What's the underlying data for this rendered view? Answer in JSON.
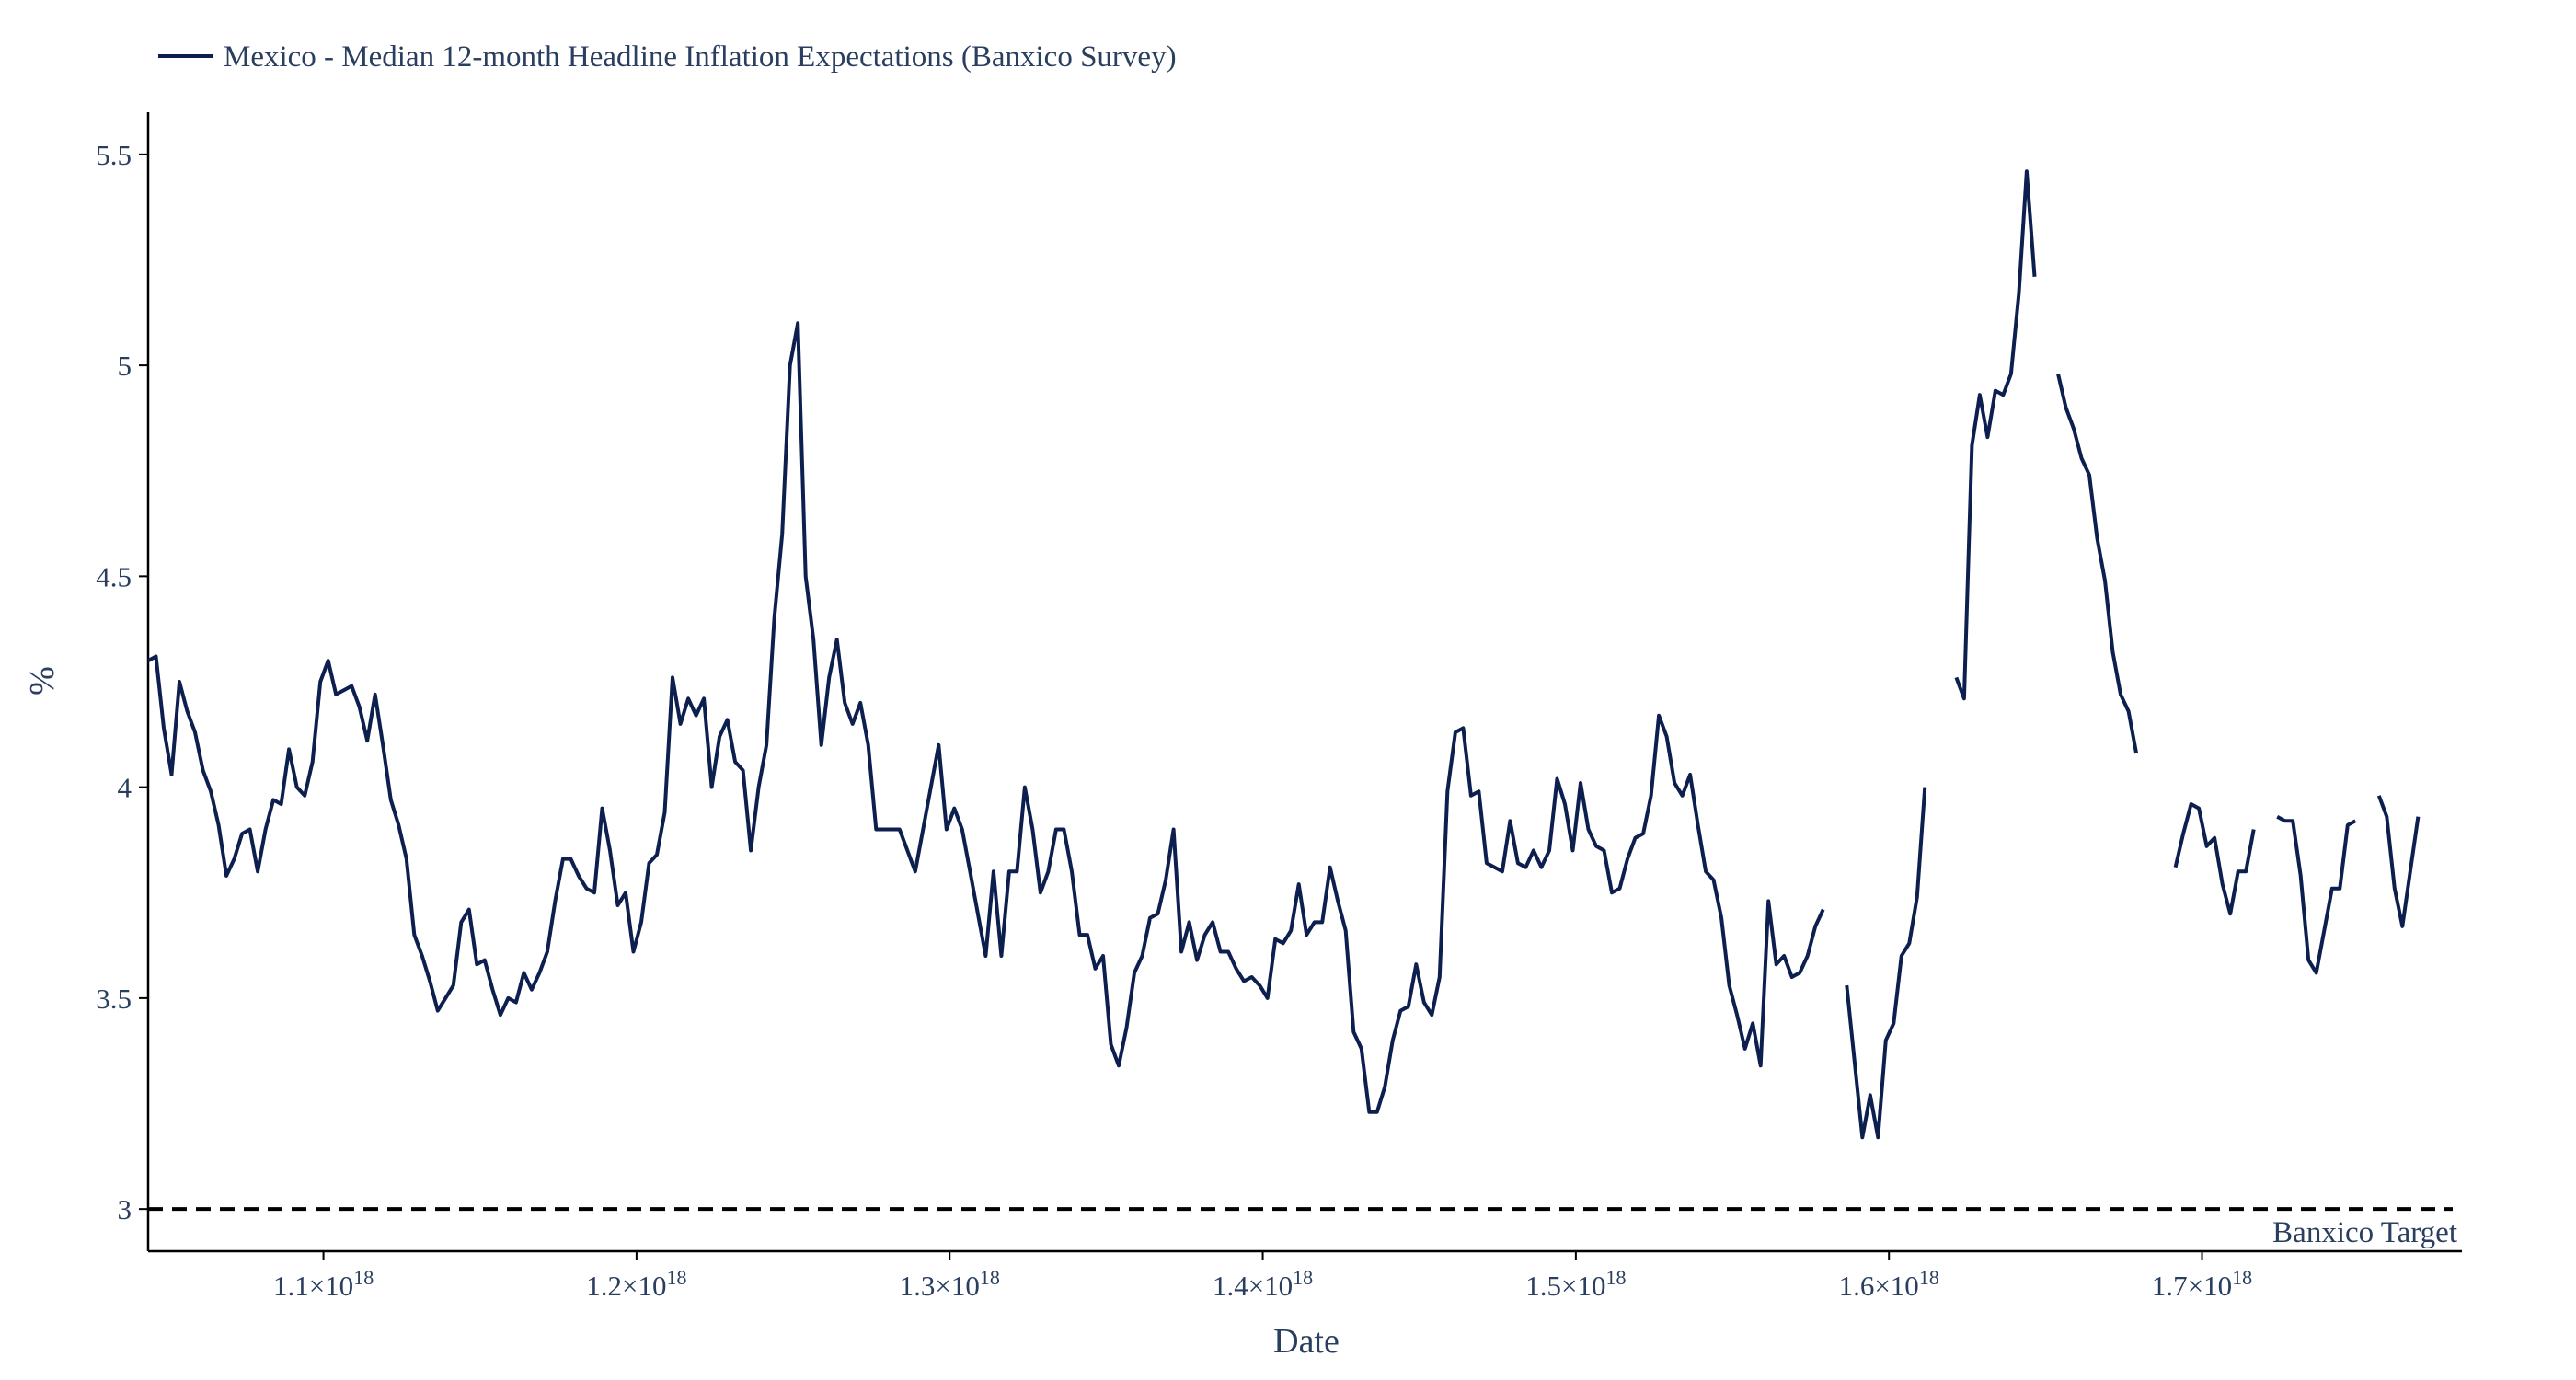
{
  "chart_data": {
    "type": "line",
    "title": "",
    "xlabel": "Date",
    "ylabel": "%",
    "xlim": [
      1.044e+18,
      1.783e+18
    ],
    "ylim": [
      2.9,
      5.6
    ],
    "grid": false,
    "legend_position": "top-left",
    "x_ticks": [
      {
        "value": 1.1e+18,
        "base": "1.1×10",
        "exp": "18"
      },
      {
        "value": 1.2e+18,
        "base": "1.2×10",
        "exp": "18"
      },
      {
        "value": 1.3e+18,
        "base": "1.3×10",
        "exp": "18"
      },
      {
        "value": 1.4e+18,
        "base": "1.4×10",
        "exp": "18"
      },
      {
        "value": 1.5e+18,
        "base": "1.5×10",
        "exp": "18"
      },
      {
        "value": 1.6e+18,
        "base": "1.6×10",
        "exp": "18"
      },
      {
        "value": 1.7e+18,
        "base": "1.7×10",
        "exp": "18"
      }
    ],
    "y_ticks": [
      {
        "value": 3,
        "label": "3"
      },
      {
        "value": 3.5,
        "label": "3.5"
      },
      {
        "value": 4,
        "label": "4"
      },
      {
        "value": 4.5,
        "label": "4.5"
      },
      {
        "value": 5,
        "label": "5"
      },
      {
        "value": 5.5,
        "label": "5.5"
      }
    ],
    "series": [
      {
        "name": "Mexico - Median 12-month Headline Inflation Expectations (Banxico Survey)",
        "color": "#0c1f4f",
        "x_start": 1.044e+18,
        "x_step": 2500000000000000.0,
        "values": [
          4.3,
          4.31,
          4.14,
          4.03,
          4.25,
          4.18,
          4.13,
          4.04,
          3.99,
          3.91,
          3.79,
          3.83,
          3.89,
          3.9,
          3.8,
          3.9,
          3.97,
          3.96,
          4.09,
          4.0,
          3.98,
          4.06,
          4.25,
          4.3,
          4.22,
          4.23,
          4.24,
          4.19,
          4.11,
          4.22,
          4.1,
          3.97,
          3.91,
          3.83,
          3.65,
          3.6,
          3.54,
          3.47,
          3.5,
          3.53,
          3.68,
          3.71,
          3.58,
          3.59,
          3.52,
          3.46,
          3.5,
          3.49,
          3.56,
          3.52,
          3.56,
          3.61,
          3.73,
          3.83,
          3.83,
          3.79,
          3.76,
          3.75,
          3.95,
          3.85,
          3.72,
          3.75,
          3.61,
          3.68,
          3.82,
          3.84,
          3.94,
          4.26,
          4.15,
          4.21,
          4.17,
          4.21,
          4.0,
          4.12,
          4.16,
          4.06,
          4.04,
          3.85,
          4.0,
          4.1,
          4.4,
          4.6,
          5.0,
          5.1,
          4.5,
          4.35,
          4.1,
          4.26,
          4.35,
          4.2,
          4.15,
          4.2,
          4.1,
          3.9,
          3.9,
          3.9,
          3.9,
          3.85,
          3.8,
          3.9,
          4.0,
          4.1,
          3.9,
          3.95,
          3.9,
          3.8,
          3.7,
          3.6,
          3.8,
          3.6,
          3.8,
          3.8,
          4.0,
          3.9,
          3.75,
          3.8,
          3.9,
          3.9,
          3.8,
          3.65,
          3.65,
          3.57,
          3.6,
          3.39,
          3.34,
          3.43,
          3.56,
          3.6,
          3.69,
          3.7,
          3.78,
          3.9,
          3.61,
          3.68,
          3.59,
          3.65,
          3.68,
          3.61,
          3.61,
          3.57,
          3.54,
          3.55,
          3.53,
          3.5,
          3.64,
          3.63,
          3.66,
          3.77,
          3.65,
          3.68,
          3.68,
          3.81,
          3.73,
          3.66,
          3.42,
          3.38,
          3.23,
          3.23,
          3.29,
          3.4,
          3.47,
          3.48,
          3.58,
          3.49,
          3.46,
          3.55,
          3.99,
          4.13,
          4.14,
          3.98,
          3.99,
          3.82,
          3.81,
          3.8,
          3.92,
          3.82,
          3.81,
          3.85,
          3.81,
          3.85,
          4.02,
          3.96,
          3.85,
          4.01,
          3.9,
          3.86,
          3.85,
          3.75,
          3.76,
          3.83,
          3.88,
          3.89,
          3.98,
          4.17,
          4.12,
          4.01,
          3.98,
          4.03,
          3.91,
          3.8,
          3.78,
          3.69,
          3.53,
          3.46,
          3.38,
          3.44,
          3.34,
          3.73,
          3.58,
          3.6,
          3.55,
          3.56,
          3.6,
          3.67,
          3.71,
          null,
          null,
          3.53,
          3.35,
          3.17,
          3.27,
          3.17,
          3.4,
          3.44,
          3.6,
          3.63,
          3.74,
          4.0,
          null,
          null,
          null,
          4.26,
          4.21,
          4.81,
          4.93,
          4.83,
          4.94,
          4.93,
          4.98,
          5.17,
          5.46,
          5.21,
          null,
          null,
          4.98,
          4.9,
          4.85,
          4.78,
          4.74,
          4.59,
          4.49,
          4.32,
          4.22,
          4.18,
          4.08,
          null,
          null,
          null,
          null,
          3.81,
          3.89,
          3.96,
          3.95,
          3.86,
          3.88,
          3.77,
          3.7,
          3.8,
          3.8,
          3.9,
          null,
          null,
          3.93,
          3.92,
          3.92,
          3.79,
          3.59,
          3.56,
          3.66,
          3.76,
          3.76,
          3.91,
          3.92,
          null,
          null,
          3.98,
          3.93,
          3.76,
          3.67,
          3.8,
          3.93
        ]
      }
    ],
    "reference_lines": [
      {
        "y": 3,
        "label": "Banxico Target",
        "color": "#000000",
        "style": "dashed"
      }
    ]
  }
}
